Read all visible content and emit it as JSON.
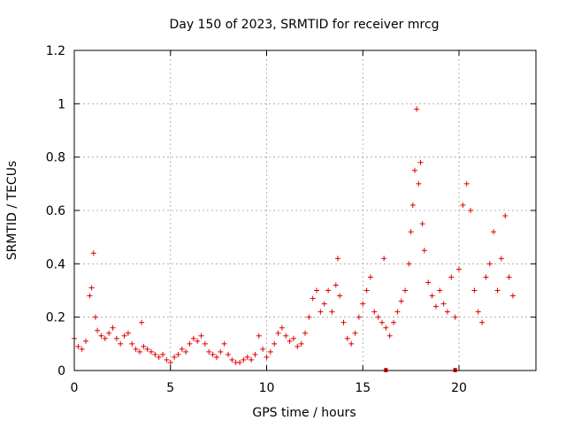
{
  "chart_data": {
    "type": "scatter",
    "title": "Day 150 of 2023, SRMTID for receiver mrcg",
    "xlabel": "GPS time / hours",
    "ylabel": "SRMTID / TECUs",
    "xlim": [
      0,
      24
    ],
    "ylim": [
      0,
      1.2
    ],
    "xticks": [
      0,
      5,
      10,
      15,
      20
    ],
    "yticks": [
      0,
      0.2,
      0.4,
      0.6,
      0.8,
      1.0,
      1.2
    ],
    "xtick_labels": [
      "0",
      "5",
      "10",
      "15",
      "20"
    ],
    "ytick_labels": [
      "0",
      "0.2",
      "0.4",
      "0.6",
      "0.8",
      "1",
      "1.2"
    ],
    "grid": true,
    "legend": "none",
    "marker": "plus",
    "color": "#e00000",
    "series": [
      {
        "name": "SRMTID",
        "x": [
          0.0,
          0.2,
          0.4,
          0.6,
          0.8,
          0.9,
          1.0,
          1.1,
          1.2,
          1.4,
          1.6,
          1.8,
          2.0,
          2.2,
          2.4,
          2.6,
          2.8,
          3.0,
          3.2,
          3.4,
          3.5,
          3.6,
          3.8,
          4.0,
          4.2,
          4.4,
          4.6,
          4.8,
          5.0,
          5.2,
          5.4,
          5.6,
          5.8,
          6.0,
          6.2,
          6.4,
          6.6,
          6.8,
          7.0,
          7.2,
          7.4,
          7.6,
          7.8,
          8.0,
          8.2,
          8.4,
          8.6,
          8.8,
          9.0,
          9.2,
          9.4,
          9.6,
          9.8,
          10.0,
          10.2,
          10.4,
          10.6,
          10.8,
          11.0,
          11.2,
          11.4,
          11.6,
          11.8,
          12.0,
          12.2,
          12.4,
          12.6,
          12.8,
          13.0,
          13.2,
          13.4,
          13.6,
          13.7,
          13.8,
          14.0,
          14.2,
          14.4,
          14.6,
          14.8,
          15.0,
          15.2,
          15.4,
          15.6,
          15.8,
          16.0,
          16.1,
          16.2,
          16.4,
          16.6,
          16.8,
          17.0,
          17.2,
          17.4,
          17.5,
          17.6,
          17.7,
          17.8,
          17.9,
          18.0,
          18.1,
          18.2,
          18.4,
          18.6,
          18.8,
          19.0,
          19.2,
          19.4,
          19.6,
          19.8,
          20.0,
          20.2,
          20.4,
          20.6,
          20.8,
          21.0,
          21.2,
          21.4,
          21.6,
          21.8,
          22.0,
          22.2,
          22.4,
          22.6,
          22.8
        ],
        "y": [
          0.12,
          0.09,
          0.08,
          0.11,
          0.28,
          0.31,
          0.44,
          0.2,
          0.15,
          0.13,
          0.12,
          0.14,
          0.16,
          0.12,
          0.1,
          0.13,
          0.14,
          0.1,
          0.08,
          0.07,
          0.18,
          0.09,
          0.08,
          0.07,
          0.06,
          0.05,
          0.06,
          0.04,
          0.03,
          0.05,
          0.06,
          0.08,
          0.07,
          0.1,
          0.12,
          0.11,
          0.13,
          0.1,
          0.07,
          0.06,
          0.05,
          0.07,
          0.1,
          0.06,
          0.04,
          0.03,
          0.03,
          0.04,
          0.05,
          0.04,
          0.06,
          0.13,
          0.08,
          0.05,
          0.07,
          0.1,
          0.14,
          0.16,
          0.13,
          0.11,
          0.12,
          0.09,
          0.1,
          0.14,
          0.2,
          0.27,
          0.3,
          0.22,
          0.25,
          0.3,
          0.22,
          0.32,
          0.42,
          0.28,
          0.18,
          0.12,
          0.1,
          0.14,
          0.2,
          0.25,
          0.3,
          0.35,
          0.22,
          0.2,
          0.18,
          0.42,
          0.16,
          0.13,
          0.18,
          0.22,
          0.26,
          0.3,
          0.4,
          0.52,
          0.62,
          0.75,
          0.98,
          0.7,
          0.78,
          0.55,
          0.45,
          0.33,
          0.28,
          0.24,
          0.3,
          0.25,
          0.22,
          0.35,
          0.2,
          0.38,
          0.62,
          0.7,
          0.6,
          0.3,
          0.22,
          0.18,
          0.35,
          0.4,
          0.52,
          0.3,
          0.42,
          0.58,
          0.35,
          0.28
        ]
      }
    ],
    "zero_markers_x": [
      16.2,
      19.8
    ]
  }
}
